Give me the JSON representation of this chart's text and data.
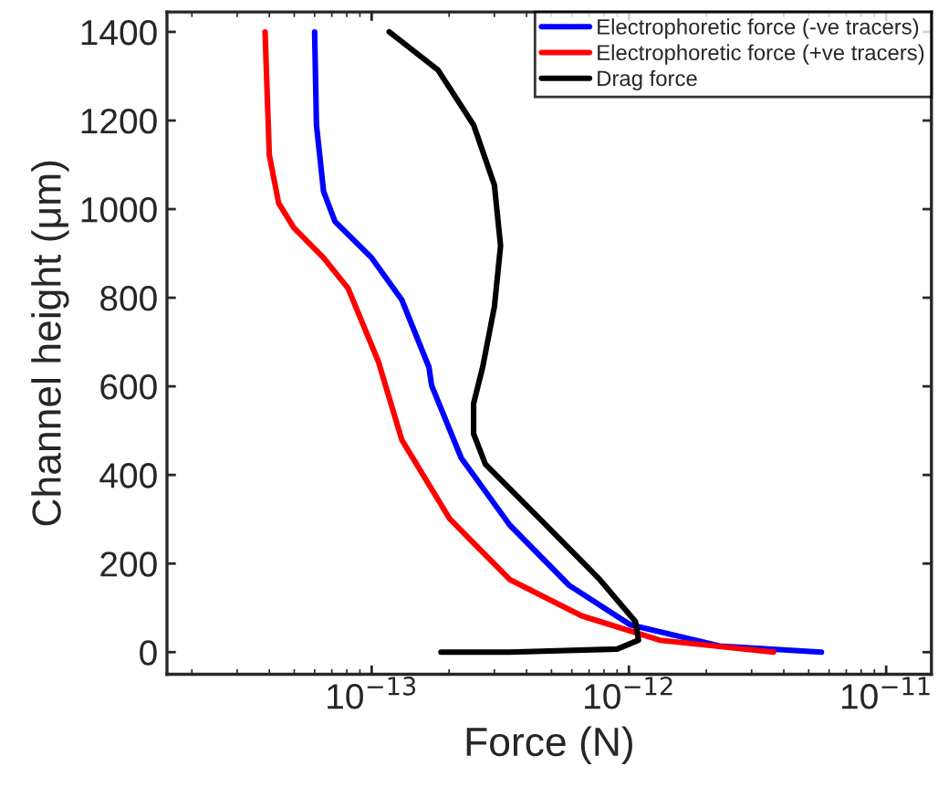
{
  "chart_data": {
    "type": "line",
    "xlabel": "Force (N)",
    "ylabel": "Channel height (μm)",
    "log": "x",
    "grid": false,
    "legend": "top right",
    "line_style": "solid",
    "marker": "none",
    "xlim": [
      1.6e-14,
      1.5e-11
    ],
    "ylim": [
      -50,
      1445
    ],
    "xticks": [
      {
        "value": 1e-13,
        "label": "10$^{−13}$"
      },
      {
        "value": 1e-12,
        "label": "10$^{−12}$"
      },
      {
        "value": 1e-11,
        "label": "10$^{−11}$"
      }
    ],
    "yticks": [
      0,
      200,
      400,
      600,
      800,
      1000,
      1200,
      1400
    ],
    "series": [
      {
        "name": "Electrophoretic force (-ve tracers)",
        "color": "#0000ff",
        "x": [
          6e-14,
          6.1e-14,
          6.5e-14,
          7.2e-14,
          1e-13,
          1.31e-13,
          1.67e-13,
          1.71e-13,
          2.23e-13,
          3.44e-13,
          5.85e-13,
          1.01e-12,
          2.25e-12,
          5.6e-12
        ],
        "values": [
          1400,
          1190,
          1040,
          972,
          890,
          795,
          643,
          602,
          438,
          287,
          151,
          62,
          14,
          0
        ]
      },
      {
        "name": "Electrophoretic force (+ve tracers)",
        "color": "#ff0000",
        "x": [
          3.85e-14,
          4e-14,
          4.35e-14,
          4.98e-14,
          6.5e-14,
          8.1e-14,
          1.06e-13,
          1.31e-13,
          2.01e-13,
          3.44e-13,
          6.55e-13,
          1.32e-12,
          3.65e-12
        ],
        "values": [
          1400,
          1122,
          1013,
          958,
          890,
          821,
          657,
          479,
          301,
          164,
          82,
          27,
          0
        ]
      },
      {
        "name": "Drag force",
        "color": "#000000",
        "x": [
          1.17e-13,
          1.81e-13,
          2.49e-13,
          3e-13,
          3.17e-13,
          3e-13,
          2.7e-13,
          2.49e-13,
          2.49e-13,
          2.77e-13,
          4.5e-13,
          7.7e-13,
          1.06e-12,
          1.09e-12,
          9e-13,
          3.44e-13,
          1.86e-13
        ],
        "values": [
          1400,
          1314,
          1190,
          1054,
          917,
          780,
          643,
          561,
          493,
          424,
          301,
          164,
          69,
          27,
          7,
          0,
          0
        ]
      }
    ]
  }
}
